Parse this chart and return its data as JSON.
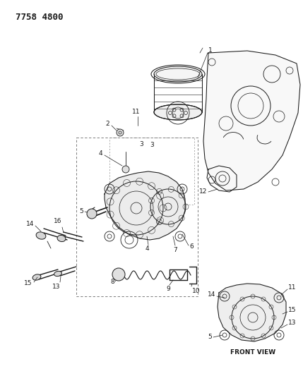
{
  "title_code": "7758 4800",
  "background_color": "#ffffff",
  "line_color": "#1a1a1a",
  "fig_width": 4.29,
  "fig_height": 5.33,
  "dpi": 100,
  "title_fontsize": 9,
  "label_fontsize": 6.5
}
